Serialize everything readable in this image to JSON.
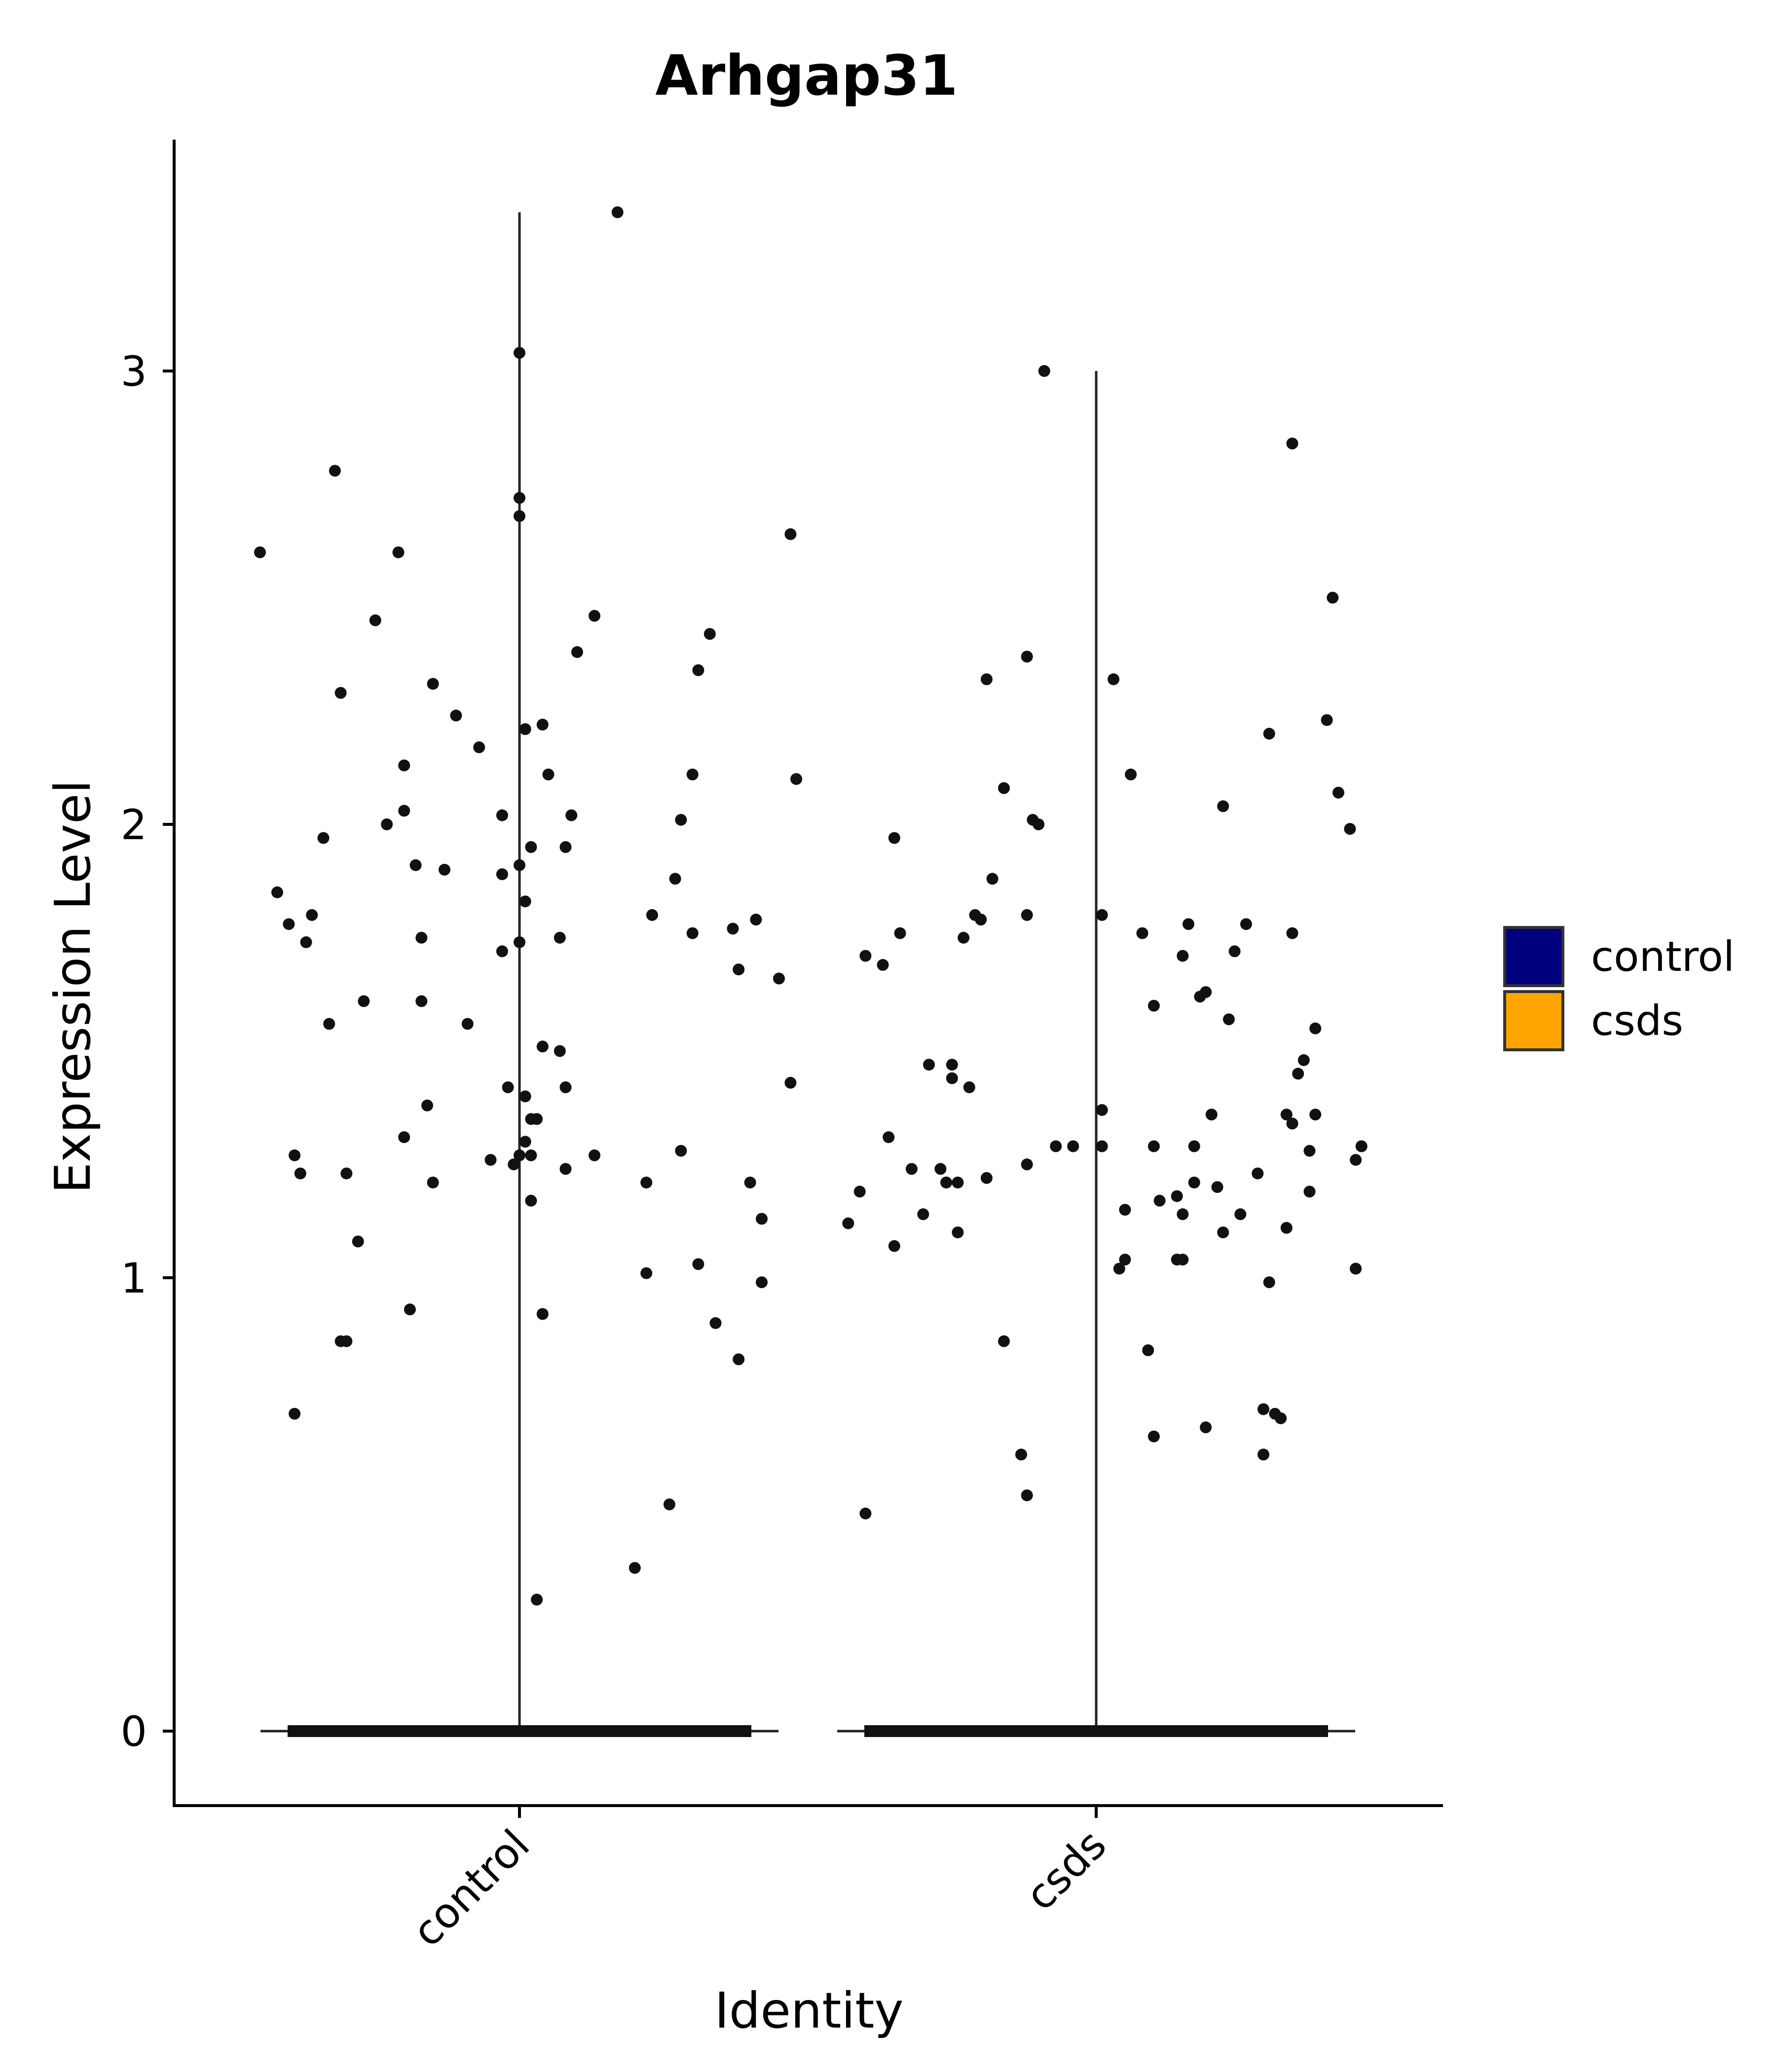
{
  "chart_data": {
    "type": "violin",
    "title": "Arhgap31",
    "xlabel": "Identity",
    "ylabel": "Expression Level",
    "categories": [
      "control",
      "csds"
    ],
    "ylim": [
      -0.17,
      3.57
    ],
    "yticks": [
      0,
      1,
      2,
      3
    ],
    "max_values": [
      3.35,
      3.0
    ],
    "legend": {
      "placement": "right",
      "entries": [
        {
          "label": "control",
          "color": "#00007F"
        },
        {
          "label": "csds",
          "color": "#FFA500"
        }
      ]
    },
    "series": [
      {
        "name": "control",
        "points": [
          [
            0.55,
            2.6
          ],
          [
            0.58,
            1.85
          ],
          [
            0.6,
            1.78
          ],
          [
            0.61,
            1.27
          ],
          [
            0.62,
            1.23
          ],
          [
            0.61,
            0.7
          ],
          [
            0.64,
            1.8
          ],
          [
            0.63,
            1.74
          ],
          [
            0.66,
            1.97
          ],
          [
            0.67,
            1.56
          ],
          [
            0.68,
            2.78
          ],
          [
            0.69,
            2.29
          ],
          [
            0.7,
            1.23
          ],
          [
            0.69,
            0.86
          ],
          [
            0.7,
            0.86
          ],
          [
            0.72,
            1.08
          ],
          [
            0.73,
            1.61
          ],
          [
            0.75,
            2.45
          ],
          [
            0.77,
            2.0
          ],
          [
            0.79,
            2.6
          ],
          [
            0.8,
            2.13
          ],
          [
            0.8,
            2.03
          ],
          [
            0.8,
            1.31
          ],
          [
            0.81,
            0.93
          ],
          [
            0.82,
            1.91
          ],
          [
            0.83,
            1.75
          ],
          [
            0.83,
            1.61
          ],
          [
            0.84,
            1.38
          ],
          [
            0.85,
            1.21
          ],
          [
            0.85,
            2.31
          ],
          [
            0.87,
            1.9
          ],
          [
            0.89,
            2.24
          ],
          [
            0.91,
            1.56
          ],
          [
            0.93,
            2.17
          ],
          [
            0.95,
            1.26
          ],
          [
            0.97,
            2.02
          ],
          [
            0.97,
            1.89
          ],
          [
            0.97,
            1.72
          ],
          [
            0.98,
            1.42
          ],
          [
            0.99,
            1.25
          ],
          [
            1.0,
            1.74
          ],
          [
            1.01,
            1.3
          ],
          [
            1.02,
            1.35
          ],
          [
            1.02,
            1.17
          ],
          [
            1.02,
            1.95
          ],
          [
            1.03,
            1.35
          ],
          [
            1.03,
            0.29
          ],
          [
            1.04,
            2.22
          ],
          [
            1.04,
            1.51
          ],
          [
            1.04,
            0.92
          ],
          [
            1.05,
            2.11
          ],
          [
            1.0,
            3.04
          ],
          [
            1.0,
            2.72
          ],
          [
            1.0,
            2.68
          ],
          [
            1.01,
            2.21
          ],
          [
            1.0,
            1.91
          ],
          [
            1.01,
            1.83
          ],
          [
            1.01,
            1.4
          ],
          [
            1.0,
            1.27
          ],
          [
            1.02,
            1.27
          ],
          [
            1.07,
            1.75
          ],
          [
            1.07,
            1.5
          ],
          [
            1.08,
            1.42
          ],
          [
            1.08,
            1.95
          ],
          [
            1.09,
            2.02
          ],
          [
            1.08,
            1.24
          ],
          [
            1.1,
            2.38
          ],
          [
            1.13,
            2.46
          ],
          [
            1.13,
            1.27
          ],
          [
            1.17,
            3.35
          ],
          [
            1.2,
            0.36
          ],
          [
            1.22,
            1.01
          ],
          [
            1.22,
            1.21
          ],
          [
            1.23,
            1.8
          ],
          [
            1.26,
            0.5
          ],
          [
            1.27,
            1.88
          ],
          [
            1.28,
            2.01
          ],
          [
            1.28,
            1.28
          ],
          [
            1.3,
            2.11
          ],
          [
            1.3,
            1.76
          ],
          [
            1.31,
            1.03
          ],
          [
            1.31,
            2.34
          ],
          [
            1.33,
            2.42
          ],
          [
            1.34,
            0.9
          ],
          [
            1.37,
            1.77
          ],
          [
            1.38,
            0.82
          ],
          [
            1.38,
            1.68
          ],
          [
            1.4,
            1.21
          ],
          [
            1.41,
            1.79
          ],
          [
            1.42,
            1.13
          ],
          [
            1.42,
            0.99
          ],
          [
            1.45,
            1.66
          ],
          [
            1.47,
            2.64
          ],
          [
            1.47,
            1.43
          ],
          [
            1.48,
            2.1
          ]
        ]
      },
      {
        "name": "csds",
        "points": [
          [
            1.57,
            1.12
          ],
          [
            1.59,
            1.19
          ],
          [
            1.6,
            1.71
          ],
          [
            1.6,
            0.48
          ],
          [
            1.63,
            1.69
          ],
          [
            1.64,
            1.31
          ],
          [
            1.65,
            1.97
          ],
          [
            1.65,
            1.07
          ],
          [
            1.66,
            1.76
          ],
          [
            1.68,
            1.24
          ],
          [
            1.7,
            1.14
          ],
          [
            1.71,
            1.47
          ],
          [
            1.73,
            1.24
          ],
          [
            1.74,
            1.21
          ],
          [
            1.74,
            1.21
          ],
          [
            1.75,
            1.47
          ],
          [
            1.75,
            1.44
          ],
          [
            1.76,
            1.21
          ],
          [
            1.76,
            1.1
          ],
          [
            1.77,
            1.75
          ],
          [
            1.78,
            1.42
          ],
          [
            1.79,
            1.8
          ],
          [
            1.8,
            1.79
          ],
          [
            1.81,
            2.32
          ],
          [
            1.81,
            1.22
          ],
          [
            1.82,
            1.88
          ],
          [
            1.84,
            2.08
          ],
          [
            1.84,
            0.86
          ],
          [
            1.87,
            0.61
          ],
          [
            1.88,
            0.52
          ],
          [
            1.88,
            1.25
          ],
          [
            1.88,
            2.37
          ],
          [
            1.88,
            1.8
          ],
          [
            1.89,
            2.01
          ],
          [
            1.9,
            2.0
          ],
          [
            1.91,
            3.0
          ],
          [
            1.93,
            1.29
          ],
          [
            1.96,
            1.29
          ],
          [
            2.01,
            1.37
          ],
          [
            2.01,
            1.29
          ],
          [
            2.01,
            1.8
          ],
          [
            2.03,
            2.32
          ],
          [
            2.04,
            1.02
          ],
          [
            2.05,
            1.04
          ],
          [
            2.05,
            1.15
          ],
          [
            2.06,
            2.11
          ],
          [
            2.08,
            1.76
          ],
          [
            2.09,
            0.84
          ],
          [
            2.1,
            1.6
          ],
          [
            2.1,
            1.29
          ],
          [
            2.1,
            0.65
          ],
          [
            2.11,
            1.17
          ],
          [
            2.14,
            1.04
          ],
          [
            2.14,
            1.18
          ],
          [
            2.15,
            1.04
          ],
          [
            2.15,
            1.14
          ],
          [
            2.15,
            1.71
          ],
          [
            2.16,
            1.78
          ],
          [
            2.17,
            1.29
          ],
          [
            2.17,
            1.21
          ],
          [
            2.18,
            1.62
          ],
          [
            2.19,
            1.63
          ],
          [
            2.19,
            0.67
          ],
          [
            2.2,
            1.36
          ],
          [
            2.21,
            1.2
          ],
          [
            2.22,
            1.1
          ],
          [
            2.22,
            2.04
          ],
          [
            2.23,
            1.57
          ],
          [
            2.24,
            1.72
          ],
          [
            2.25,
            1.14
          ],
          [
            2.26,
            1.78
          ],
          [
            2.28,
            1.23
          ],
          [
            2.29,
            0.61
          ],
          [
            2.29,
            0.71
          ],
          [
            2.3,
            2.2
          ],
          [
            2.3,
            0.99
          ],
          [
            2.31,
            0.7
          ],
          [
            2.32,
            0.69
          ],
          [
            2.33,
            1.36
          ],
          [
            2.33,
            1.11
          ],
          [
            2.34,
            1.34
          ],
          [
            2.34,
            1.76
          ],
          [
            2.34,
            2.84
          ],
          [
            2.35,
            1.45
          ],
          [
            2.36,
            1.48
          ],
          [
            2.37,
            1.19
          ],
          [
            2.37,
            1.28
          ],
          [
            2.38,
            1.36
          ],
          [
            2.38,
            1.55
          ],
          [
            2.4,
            2.23
          ],
          [
            2.41,
            2.5
          ],
          [
            2.42,
            2.07
          ],
          [
            2.44,
            1.99
          ],
          [
            2.45,
            1.02
          ],
          [
            2.45,
            1.26
          ],
          [
            2.46,
            1.29
          ]
        ]
      }
    ]
  }
}
